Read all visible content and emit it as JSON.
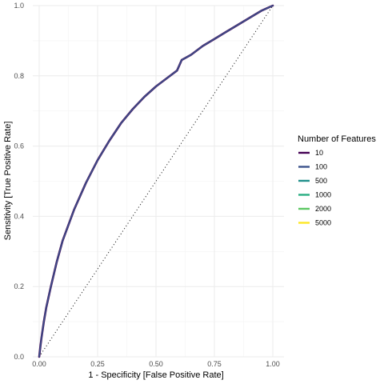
{
  "chart_data": {
    "type": "line",
    "xlabel": "1 - Specificity [False Positive Rate]",
    "ylabel": "Sensitivity [True Positive Rate]",
    "xlim": [
      0,
      1
    ],
    "ylim": [
      0,
      1
    ],
    "x_ticks": [
      "0.00",
      "0.25",
      "0.50",
      "0.75",
      "1.00"
    ],
    "y_ticks": [
      "0.0",
      "0.2",
      "0.4",
      "0.6",
      "0.8",
      "1.0"
    ],
    "grid": true,
    "legend_title": "Number of Features",
    "legend_position": "right",
    "series": [
      {
        "name": "10",
        "color": "#440154",
        "x": [
          0,
          0.005,
          0.01,
          0.02,
          0.03,
          0.05,
          0.075,
          0.1,
          0.15,
          0.2,
          0.25,
          0.3,
          0.35,
          0.4,
          0.45,
          0.5,
          0.55,
          0.59,
          0.6,
          0.61,
          0.65,
          0.7,
          0.75,
          0.8,
          0.85,
          0.9,
          0.95,
          1.0
        ],
        "y": [
          0,
          0.03,
          0.055,
          0.1,
          0.14,
          0.2,
          0.27,
          0.33,
          0.42,
          0.495,
          0.56,
          0.615,
          0.665,
          0.705,
          0.74,
          0.77,
          0.795,
          0.815,
          0.83,
          0.845,
          0.86,
          0.885,
          0.905,
          0.925,
          0.945,
          0.965,
          0.985,
          1.0
        ]
      },
      {
        "name": "100",
        "color": "#3B528B",
        "x": [
          0,
          0.005,
          0.01,
          0.02,
          0.03,
          0.05,
          0.075,
          0.1,
          0.15,
          0.2,
          0.25,
          0.3,
          0.35,
          0.4,
          0.45,
          0.5,
          0.55,
          0.59,
          0.6,
          0.61,
          0.65,
          0.7,
          0.75,
          0.8,
          0.85,
          0.9,
          0.95,
          1.0
        ],
        "y": [
          0,
          0.03,
          0.055,
          0.1,
          0.14,
          0.2,
          0.27,
          0.33,
          0.42,
          0.495,
          0.56,
          0.615,
          0.665,
          0.705,
          0.74,
          0.77,
          0.795,
          0.815,
          0.83,
          0.845,
          0.86,
          0.885,
          0.905,
          0.925,
          0.945,
          0.965,
          0.985,
          1.0
        ]
      },
      {
        "name": "500",
        "color": "#21908C",
        "x": [],
        "y": []
      },
      {
        "name": "1000",
        "color": "#27AD81",
        "x": [],
        "y": []
      },
      {
        "name": "2000",
        "color": "#5DC863",
        "x": [],
        "y": []
      },
      {
        "name": "5000",
        "color": "#FDE725",
        "x": [],
        "y": []
      }
    ],
    "reference_line": {
      "x": [
        0,
        1
      ],
      "y": [
        0,
        1
      ],
      "style": "dotted",
      "color": "#000000"
    }
  }
}
